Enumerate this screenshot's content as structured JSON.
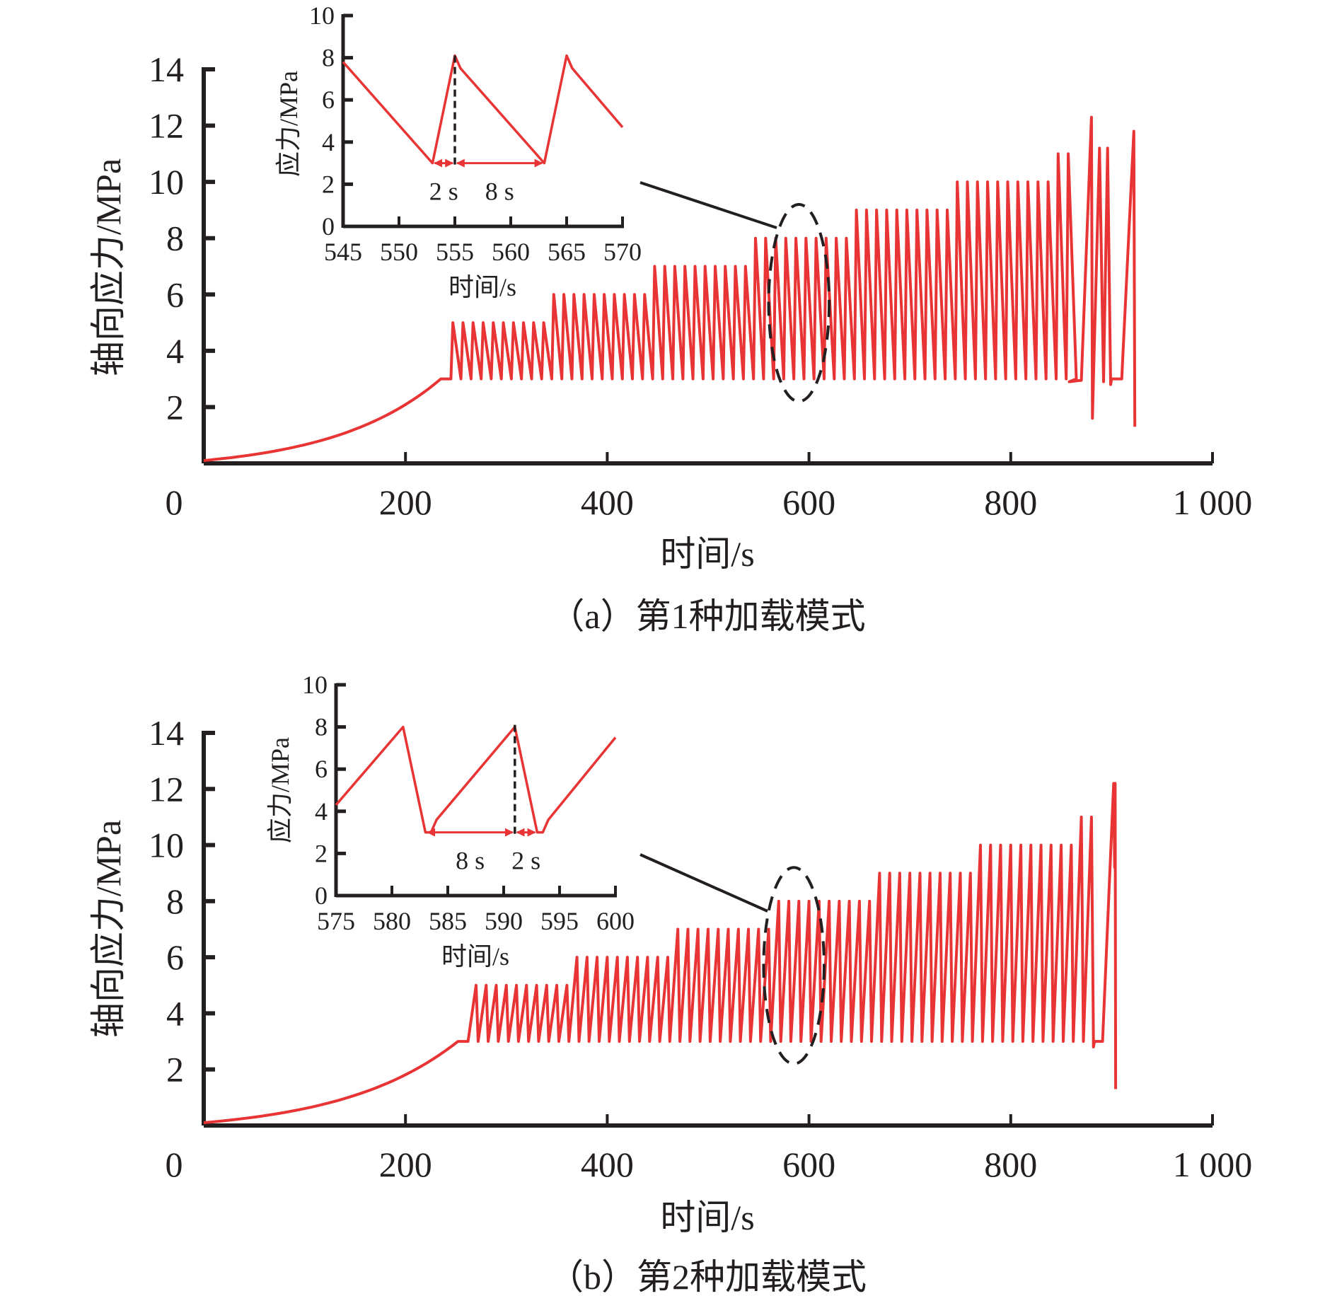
{
  "colors": {
    "series": "#e83434",
    "axis": "#231f20"
  },
  "chart_data": [
    {
      "id": "a",
      "type": "line",
      "caption": "（a）第1种加载模式",
      "xlabel": "时间/s",
      "ylabel": "轴向应力/MPa",
      "xlim": [
        0,
        1000
      ],
      "ylim": [
        0,
        14
      ],
      "xticks": [
        0,
        200,
        400,
        600,
        800,
        1000
      ],
      "xtick_labels": [
        "0",
        "200",
        "400",
        "600",
        "800",
        "1 000"
      ],
      "yticks": [
        2,
        4,
        6,
        8,
        10,
        12,
        14
      ],
      "ytick_labels": [
        "2",
        "4",
        "6",
        "8",
        "10",
        "12",
        "14"
      ],
      "grid": false,
      "legend": "none",
      "series": [
        {
          "name": "轴向应力",
          "description": "monotonic ramp to 3 MPa then cyclic loading with stepwise increasing peaks (rise 2 s, fall 8 s), failure near 925 s",
          "ramp": {
            "t_start": 0,
            "t_end": 235,
            "y_start": 0.1,
            "y_end": 3.0
          },
          "hold": {
            "t_end": 245,
            "y": 3.0
          },
          "valley": 3.0,
          "stages": [
            {
              "peak": 5.0,
              "cycles": 10
            },
            {
              "peak": 6.0,
              "cycles": 10
            },
            {
              "peak": 7.0,
              "cycles": 10
            },
            {
              "peak": 8.0,
              "cycles": 10
            },
            {
              "peak": 9.0,
              "cycles": 10
            },
            {
              "peak": 10.0,
              "cycles": 10
            },
            {
              "peak": 11.0,
              "cycles": 2
            }
          ],
          "period_s": 10,
          "tail_points": [
            [
              858,
              2.9
            ],
            [
              870,
              2.95
            ],
            [
              880,
              12.3
            ],
            [
              881,
              1.6
            ],
            [
              882,
              3.0
            ],
            [
              888,
              11.2
            ],
            [
              892,
              2.9
            ],
            [
              896,
              11.2
            ],
            [
              899,
              2.8
            ],
            [
              900,
              3.0
            ],
            [
              910,
              3.0
            ],
            [
              922,
              11.8
            ],
            [
              923,
              1.3
            ]
          ]
        }
      ],
      "annotation": {
        "type": "ellipse",
        "x_range": [
          560,
          620
        ],
        "y_range": [
          2.2,
          9.2
        ],
        "leader_to": "inset"
      },
      "inset": {
        "xlabel": "时间/s",
        "ylabel": "应力/MPa",
        "xlim": [
          545,
          570
        ],
        "ylim": [
          0,
          10
        ],
        "xticks": [
          545,
          550,
          555,
          560,
          565,
          570
        ],
        "yticks": [
          0,
          2,
          4,
          6,
          8,
          10
        ],
        "points": [
          [
            545,
            7.8
          ],
          [
            553,
            3.0
          ],
          [
            555,
            8.1
          ],
          [
            555.5,
            7.5
          ],
          [
            563,
            3.0
          ],
          [
            565,
            8.1
          ],
          [
            565.5,
            7.5
          ],
          [
            570,
            4.7
          ]
        ],
        "dashed_vline_x": 555,
        "brackets": [
          {
            "from": 553,
            "to": 555,
            "y": 3.0,
            "label": "2 s"
          },
          {
            "from": 555,
            "to": 563,
            "y": 3.0,
            "label": "8 s"
          }
        ]
      }
    },
    {
      "id": "b",
      "type": "line",
      "caption": "（b）第2种加载模式",
      "xlabel": "时间/s",
      "ylabel": "轴向应力/MPa",
      "xlim": [
        0,
        1000
      ],
      "ylim": [
        0,
        14
      ],
      "xticks": [
        0,
        200,
        400,
        600,
        800,
        1000
      ],
      "xtick_labels": [
        "0",
        "200",
        "400",
        "600",
        "800",
        "1 000"
      ],
      "yticks": [
        2,
        4,
        6,
        8,
        10,
        12,
        14
      ],
      "ytick_labels": [
        "2",
        "4",
        "6",
        "8",
        "10",
        "12",
        "14"
      ],
      "grid": false,
      "legend": "none",
      "series": [
        {
          "name": "轴向应力",
          "description": "monotonic ramp to 3 MPa then cyclic loading with stepwise increasing peaks (rise 8 s, fall 2 s), failure near 905 s",
          "ramp": {
            "t_start": 0,
            "t_end": 252,
            "y_start": 0.1,
            "y_end": 3.0
          },
          "hold": {
            "t_end": 262,
            "y": 3.0
          },
          "valley": 3.0,
          "stages": [
            {
              "peak": 5.0,
              "cycles": 10
            },
            {
              "peak": 6.0,
              "cycles": 10
            },
            {
              "peak": 7.0,
              "cycles": 10
            },
            {
              "peak": 8.0,
              "cycles": 10
            },
            {
              "peak": 9.0,
              "cycles": 10
            },
            {
              "peak": 10.0,
              "cycles": 10
            },
            {
              "peak": 11.0,
              "cycles": 2
            }
          ],
          "period_s": 10,
          "tail_points": [
            [
              882,
              2.8
            ],
            [
              883,
              3.0
            ],
            [
              891,
              3.0
            ],
            [
              902,
              12.2
            ],
            [
              903,
              9.2
            ],
            [
              903.5,
              12.2
            ],
            [
              904,
              1.3
            ]
          ]
        }
      ],
      "annotation": {
        "type": "ellipse",
        "x_range": [
          555,
          615
        ],
        "y_range": [
          2.2,
          9.2
        ],
        "leader_to": "inset"
      },
      "inset": {
        "xlabel": "时间/s",
        "ylabel": "应力/MPa",
        "xlim": [
          575,
          600
        ],
        "ylim": [
          0,
          10
        ],
        "xticks": [
          575,
          580,
          585,
          590,
          595,
          600
        ],
        "yticks": [
          0,
          2,
          4,
          6,
          8,
          10
        ],
        "points": [
          [
            575,
            4.3
          ],
          [
            581,
            8.0
          ],
          [
            583,
            3.0
          ],
          [
            583.5,
            3.0
          ],
          [
            584,
            3.6
          ],
          [
            591,
            8.0
          ],
          [
            593,
            3.0
          ],
          [
            593.5,
            3.0
          ],
          [
            594,
            3.6
          ],
          [
            600,
            7.5
          ]
        ],
        "dashed_vline_x": 591,
        "brackets": [
          {
            "from": 583,
            "to": 591,
            "y": 3.0,
            "label": "8 s"
          },
          {
            "from": 591,
            "to": 593,
            "y": 3.0,
            "label": "2 s"
          }
        ]
      }
    }
  ]
}
